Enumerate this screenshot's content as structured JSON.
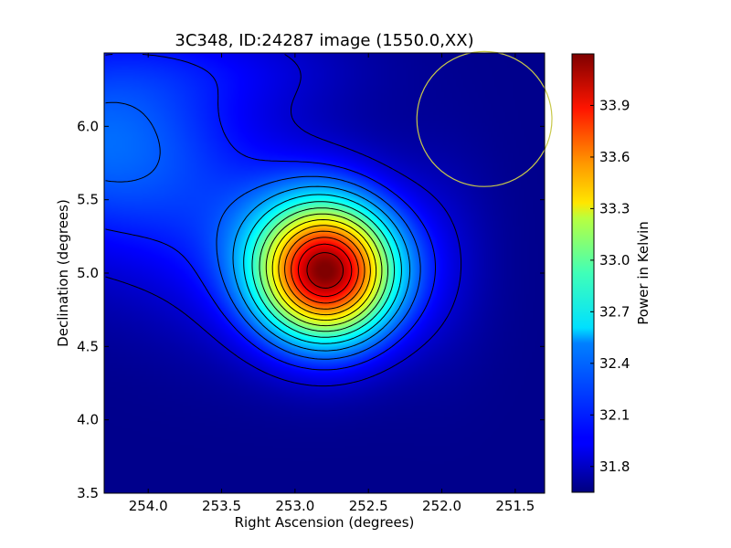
{
  "chart_data": {
    "type": "heatmap",
    "title": "3C348, ID:24287 image (1550.0,XX)",
    "xlabel": "Right Ascension (degrees)",
    "ylabel": "Declination (degrees)",
    "xlim": [
      254.3,
      251.3
    ],
    "ylim": [
      3.5,
      6.5
    ],
    "x_ticks": [
      254.0,
      253.5,
      253.0,
      252.5,
      252.0,
      251.5
    ],
    "x_tick_labels": [
      "254.0",
      "253.5",
      "253.0",
      "252.5",
      "252.0",
      "251.5"
    ],
    "y_ticks": [
      3.5,
      4.0,
      4.5,
      5.0,
      5.5,
      6.0
    ],
    "y_tick_labels": [
      "3.5",
      "4.0",
      "4.5",
      "5.0",
      "5.5",
      "6.0"
    ],
    "colormap": "jet",
    "colorbar": {
      "label": "Power in Kelvin",
      "range": [
        31.65,
        34.2
      ],
      "ticks": [
        31.8,
        32.1,
        32.4,
        32.7,
        33.0,
        33.3,
        33.6,
        33.9
      ],
      "tick_labels": [
        "31.8",
        "32.1",
        "32.4",
        "32.7",
        "33.0",
        "33.3",
        "33.6",
        "33.9"
      ]
    },
    "peak": {
      "ra": 252.78,
      "dec": 5.01,
      "value": 34.15
    },
    "contours": true,
    "beam_circle": {
      "ra": 251.71,
      "dec": 6.05,
      "radius_deg": 0.46,
      "color": "#c8c84a"
    }
  }
}
